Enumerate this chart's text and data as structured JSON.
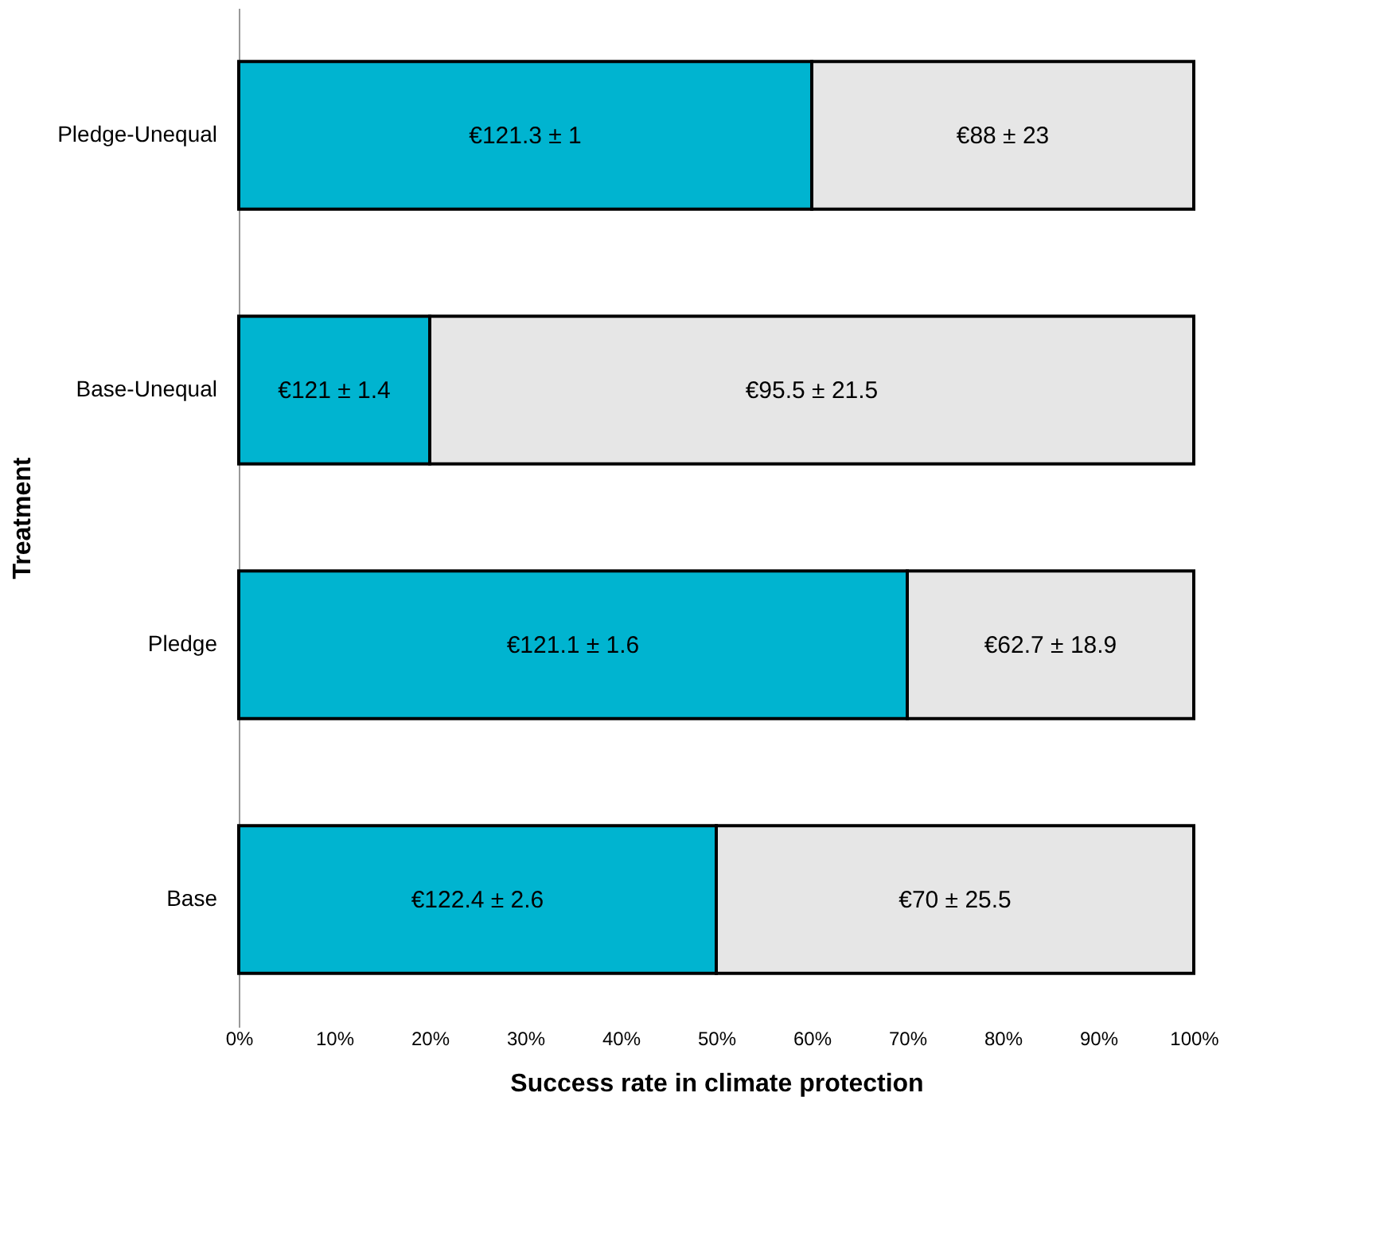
{
  "chart_data": {
    "type": "bar",
    "orientation": "horizontal",
    "stacked": true,
    "xlabel": "Success rate in climate protection",
    "ylabel": "Treatment",
    "categories": [
      "Pledge-Unequal",
      "Base-Unequal",
      "Pledge",
      "Base"
    ],
    "series": [
      {
        "color": "#00b4d0",
        "values": [
          60,
          20,
          70,
          50
        ]
      },
      {
        "color": "#e6e6e6",
        "values": [
          40,
          80,
          30,
          50
        ]
      }
    ],
    "annotations": [
      "€121.3 ± 1",
      "€88 ± 23",
      "€121 ± 1.4",
      "€95.5 ± 21.5",
      "€121.1 ± 1.6",
      "€62.7 ± 18.9",
      "€122.4 ± 2.6",
      "€70 ± 25.5"
    ],
    "xlim": [
      0,
      100
    ],
    "xticks": [
      {
        "value": 0,
        "label": "0%"
      },
      {
        "value": 10,
        "label": "10%"
      },
      {
        "value": 20,
        "label": "20%"
      },
      {
        "value": 30,
        "label": "30%"
      },
      {
        "value": 40,
        "label": "40%"
      },
      {
        "value": 50,
        "label": "50%"
      },
      {
        "value": 60,
        "label": "60%"
      },
      {
        "value": 70,
        "label": "70%"
      },
      {
        "value": 80,
        "label": "80%"
      },
      {
        "value": 90,
        "label": "90%"
      },
      {
        "value": 100,
        "label": "100%"
      }
    ],
    "grid": false,
    "legend": false
  }
}
